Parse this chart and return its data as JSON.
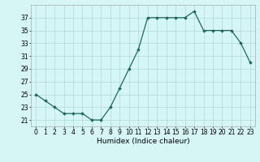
{
  "x": [
    0,
    1,
    2,
    3,
    4,
    5,
    6,
    7,
    8,
    9,
    10,
    11,
    12,
    13,
    14,
    15,
    16,
    17,
    18,
    19,
    20,
    21,
    22,
    23
  ],
  "y": [
    25,
    24,
    23,
    22,
    22,
    22,
    21,
    21,
    23,
    26,
    29,
    32,
    37,
    37,
    37,
    37,
    37,
    38,
    35,
    35,
    35,
    35,
    33,
    30
  ],
  "line_color": "#1a6b5a",
  "marker": "D",
  "marker_size": 1.8,
  "bg_color": "#d6f5f5",
  "grid_color": "#b0d8d8",
  "xlabel": "Humidex (Indice chaleur)",
  "xlim": [
    -0.5,
    23.5
  ],
  "ylim": [
    20,
    39
  ],
  "yticks": [
    21,
    23,
    25,
    27,
    29,
    31,
    33,
    35,
    37
  ],
  "xticks": [
    0,
    1,
    2,
    3,
    4,
    5,
    6,
    7,
    8,
    9,
    10,
    11,
    12,
    13,
    14,
    15,
    16,
    17,
    18,
    19,
    20,
    21,
    22,
    23
  ],
  "xtick_labels": [
    "0",
    "1",
    "2",
    "3",
    "4",
    "5",
    "6",
    "7",
    "8",
    "9",
    "10",
    "11",
    "12",
    "13",
    "14",
    "15",
    "16",
    "17",
    "18",
    "19",
    "20",
    "21",
    "22",
    "23"
  ],
  "linewidth": 0.9,
  "xlabel_fontsize": 6.5,
  "tick_fontsize": 5.5
}
